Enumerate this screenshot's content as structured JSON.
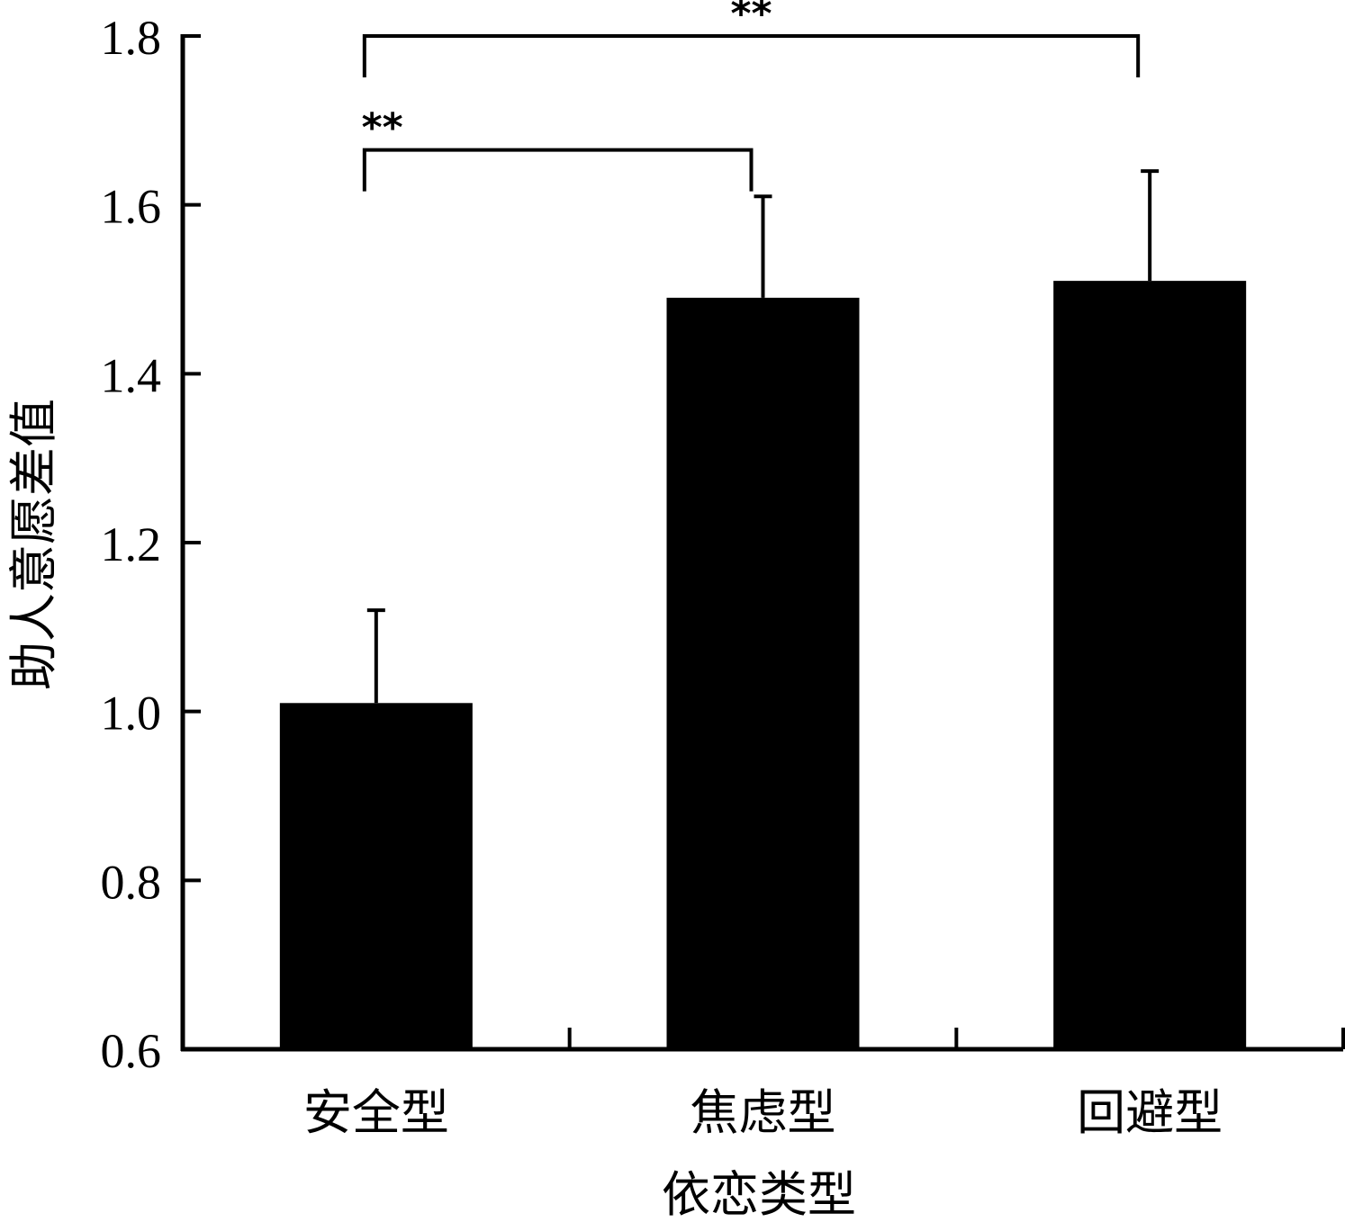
{
  "chart_data": {
    "type": "bar",
    "title": "",
    "xlabel": "依恋类型",
    "ylabel": "助人意愿差值",
    "categories": [
      "安全型",
      "焦虑型",
      "回避型"
    ],
    "values": [
      1.01,
      1.49,
      1.51
    ],
    "error_upper": [
      1.12,
      1.61,
      1.64
    ],
    "ylim": [
      0.6,
      1.8
    ],
    "yticks": [
      "0.6",
      "0.8",
      "1.0",
      "1.2",
      "1.4",
      "1.6",
      "1.8"
    ],
    "bar_color": "#000000",
    "grid": false,
    "legend": "none",
    "significance": [
      {
        "from": 0,
        "to": 1,
        "label": "**",
        "y": 1.665
      },
      {
        "from": 0,
        "to": 2,
        "label": "**",
        "y": 1.8
      }
    ]
  }
}
